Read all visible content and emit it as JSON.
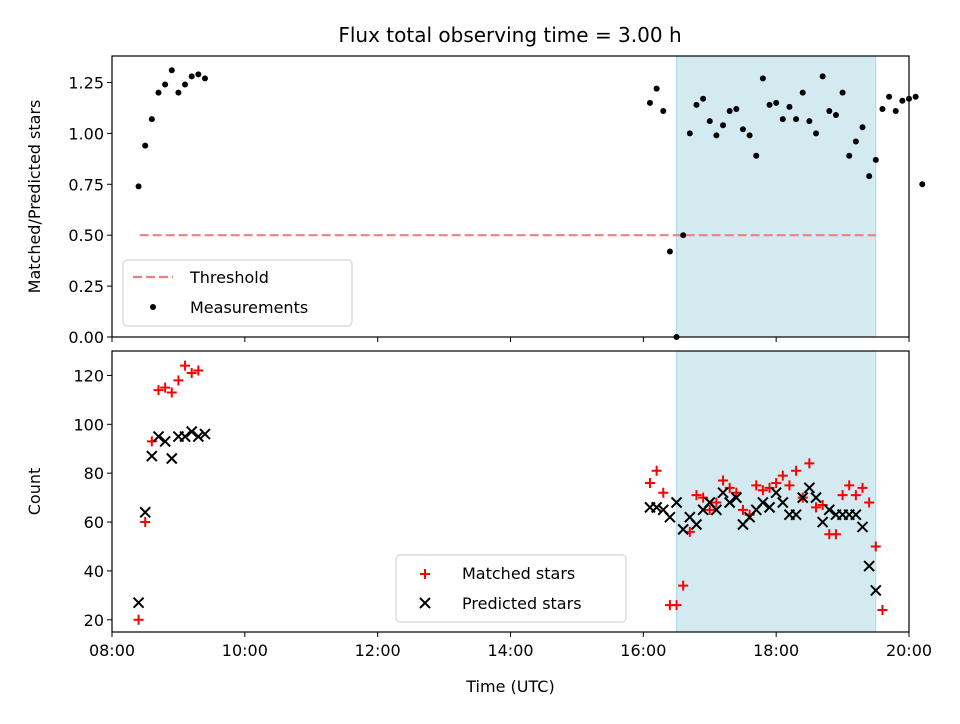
{
  "figure": {
    "title": "Flux total observing time = 3.00 h"
  },
  "chart_data": [
    {
      "type": "scatter",
      "ylabel": "Matched/Predicted stars",
      "xlabel": "",
      "xlim": [
        "08:00",
        "20:00"
      ],
      "ylim": [
        0,
        1.38
      ],
      "yticks": [
        "0.00",
        "0.25",
        "0.50",
        "0.75",
        "1.00",
        "1.25"
      ],
      "shaded_interval": [
        "16:30",
        "19:30"
      ],
      "shade_color": "#d3eaf1",
      "legend": {
        "placement": "lower-left",
        "entries": [
          "Threshold",
          "Measurements"
        ]
      },
      "threshold": {
        "name": "Threshold",
        "value": 0.5,
        "x": [
          "08:25",
          "19:30"
        ],
        "color": "#f08080",
        "style": "dashed"
      },
      "series": [
        {
          "name": "Measurements",
          "color": "#000000",
          "marker": "dot",
          "points": [
            [
              "08:24",
              0.74
            ],
            [
              "08:30",
              0.94
            ],
            [
              "08:36",
              1.07
            ],
            [
              "08:42",
              1.2
            ],
            [
              "08:48",
              1.24
            ],
            [
              "08:54",
              1.31
            ],
            [
              "09:00",
              1.2
            ],
            [
              "09:06",
              1.24
            ],
            [
              "09:12",
              1.28
            ],
            [
              "09:18",
              1.29
            ],
            [
              "09:24",
              1.27
            ],
            [
              "16:06",
              1.15
            ],
            [
              "16:12",
              1.22
            ],
            [
              "16:18",
              1.11
            ],
            [
              "16:24",
              0.42
            ],
            [
              "16:30",
              0.0
            ],
            [
              "16:36",
              0.5
            ],
            [
              "16:42",
              1.0
            ],
            [
              "16:48",
              1.14
            ],
            [
              "16:54",
              1.17
            ],
            [
              "17:00",
              1.06
            ],
            [
              "17:06",
              0.99
            ],
            [
              "17:12",
              1.04
            ],
            [
              "17:18",
              1.11
            ],
            [
              "17:24",
              1.12
            ],
            [
              "17:30",
              1.02
            ],
            [
              "17:36",
              0.99
            ],
            [
              "17:42",
              0.89
            ],
            [
              "17:48",
              1.27
            ],
            [
              "17:54",
              1.14
            ],
            [
              "18:00",
              1.15
            ],
            [
              "18:06",
              1.07
            ],
            [
              "18:12",
              1.13
            ],
            [
              "18:18",
              1.07
            ],
            [
              "18:24",
              1.2
            ],
            [
              "18:30",
              1.06
            ],
            [
              "18:36",
              1.0
            ],
            [
              "18:42",
              1.28
            ],
            [
              "18:48",
              1.11
            ],
            [
              "18:54",
              1.09
            ],
            [
              "19:00",
              1.2
            ],
            [
              "19:06",
              0.89
            ],
            [
              "19:12",
              0.96
            ],
            [
              "19:18",
              1.03
            ],
            [
              "19:24",
              0.79
            ],
            [
              "19:30",
              0.87
            ],
            [
              "19:36",
              1.12
            ],
            [
              "19:42",
              1.18
            ],
            [
              "19:48",
              1.11
            ],
            [
              "19:54",
              1.16
            ],
            [
              "20:00",
              1.17
            ],
            [
              "20:06",
              1.18
            ],
            [
              "20:12",
              0.75
            ]
          ]
        }
      ]
    },
    {
      "type": "scatter",
      "xlabel": "Time (UTC)",
      "ylabel": "Count",
      "xlim": [
        "08:00",
        "20:00"
      ],
      "xticks": [
        "08:00",
        "10:00",
        "12:00",
        "14:00",
        "16:00",
        "18:00",
        "20:00"
      ],
      "ylim": [
        15,
        130
      ],
      "yticks": [
        "20",
        "40",
        "60",
        "80",
        "100",
        "120"
      ],
      "shaded_interval": [
        "16:30",
        "19:30"
      ],
      "shade_color": "#d3eaf1",
      "legend": {
        "placement": "lower-center",
        "entries": [
          "Matched stars",
          "Predicted stars"
        ]
      },
      "series": [
        {
          "name": "Matched stars",
          "color": "#ff0000",
          "marker": "plus",
          "points": [
            [
              "08:24",
              20
            ],
            [
              "08:30",
              60
            ],
            [
              "08:36",
              93
            ],
            [
              "08:42",
              114
            ],
            [
              "08:48",
              115
            ],
            [
              "08:54",
              113
            ],
            [
              "09:00",
              118
            ],
            [
              "09:06",
              124
            ],
            [
              "09:12",
              121
            ],
            [
              "09:18",
              122
            ],
            [
              "16:06",
              76
            ],
            [
              "16:12",
              81
            ],
            [
              "16:18",
              72
            ],
            [
              "16:24",
              26
            ],
            [
              "16:30",
              26
            ],
            [
              "16:36",
              34
            ],
            [
              "16:42",
              56
            ],
            [
              "16:48",
              71
            ],
            [
              "16:54",
              70
            ],
            [
              "17:00",
              65
            ],
            [
              "17:06",
              68
            ],
            [
              "17:12",
              77
            ],
            [
              "17:18",
              74
            ],
            [
              "17:24",
              72
            ],
            [
              "17:30",
              65
            ],
            [
              "17:36",
              63
            ],
            [
              "17:42",
              75
            ],
            [
              "17:48",
              73
            ],
            [
              "17:54",
              74
            ],
            [
              "18:00",
              76
            ],
            [
              "18:06",
              79
            ],
            [
              "18:12",
              75
            ],
            [
              "18:18",
              81
            ],
            [
              "18:24",
              70
            ],
            [
              "18:30",
              84
            ],
            [
              "18:36",
              66
            ],
            [
              "18:42",
              67
            ],
            [
              "18:48",
              55
            ],
            [
              "18:54",
              55
            ],
            [
              "19:00",
              71
            ],
            [
              "19:06",
              75
            ],
            [
              "19:12",
              71
            ],
            [
              "19:18",
              74
            ],
            [
              "19:24",
              68
            ],
            [
              "19:30",
              50
            ],
            [
              "19:36",
              24
            ]
          ]
        },
        {
          "name": "Predicted stars",
          "color": "#000000",
          "marker": "x",
          "points": [
            [
              "08:24",
              27
            ],
            [
              "08:30",
              64
            ],
            [
              "08:36",
              87
            ],
            [
              "08:42",
              95
            ],
            [
              "08:48",
              93
            ],
            [
              "08:54",
              86
            ],
            [
              "09:00",
              95
            ],
            [
              "09:06",
              95
            ],
            [
              "09:12",
              97
            ],
            [
              "09:18",
              95
            ],
            [
              "09:24",
              96
            ],
            [
              "16:06",
              66
            ],
            [
              "16:12",
              66
            ],
            [
              "16:18",
              65
            ],
            [
              "16:24",
              62
            ],
            [
              "16:30",
              68
            ],
            [
              "16:36",
              57
            ],
            [
              "16:42",
              62
            ],
            [
              "16:48",
              59
            ],
            [
              "16:54",
              65
            ],
            [
              "17:00",
              68
            ],
            [
              "17:06",
              65
            ],
            [
              "17:12",
              72
            ],
            [
              "17:18",
              68
            ],
            [
              "17:24",
              70
            ],
            [
              "17:30",
              59
            ],
            [
              "17:36",
              62
            ],
            [
              "17:42",
              65
            ],
            [
              "17:48",
              68
            ],
            [
              "17:54",
              66
            ],
            [
              "18:00",
              72
            ],
            [
              "18:06",
              68
            ],
            [
              "18:12",
              63
            ],
            [
              "18:18",
              63
            ],
            [
              "18:24",
              70
            ],
            [
              "18:30",
              74
            ],
            [
              "18:36",
              70
            ],
            [
              "18:42",
              60
            ],
            [
              "18:48",
              65
            ],
            [
              "18:54",
              63
            ],
            [
              "19:00",
              63
            ],
            [
              "19:06",
              63
            ],
            [
              "19:12",
              63
            ],
            [
              "19:18",
              58
            ],
            [
              "19:24",
              42
            ],
            [
              "19:30",
              32
            ]
          ]
        }
      ]
    }
  ]
}
